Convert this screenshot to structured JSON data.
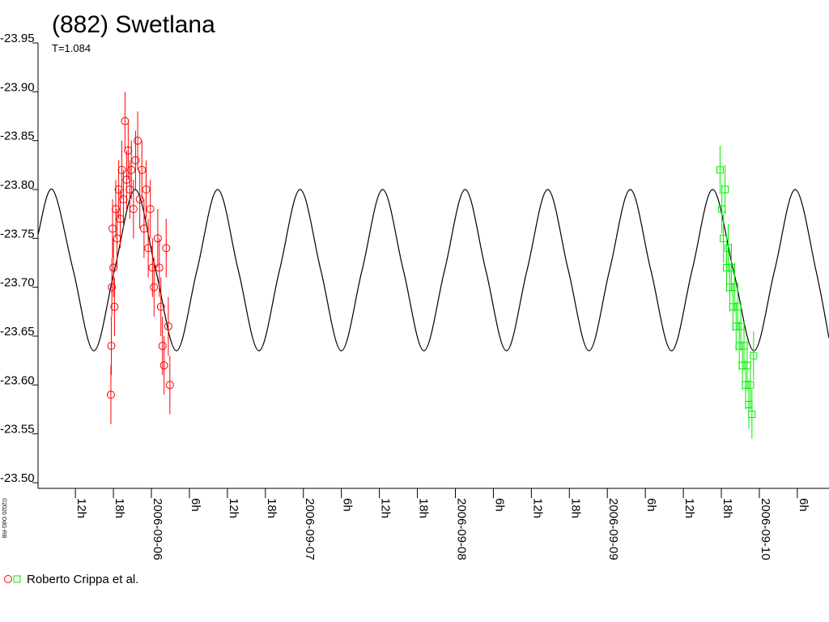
{
  "chart_data": {
    "type": "scatter",
    "title": "(882) Swetlana",
    "subtitle": "T=1.084",
    "copyright": "©2020 OdG-RB",
    "ylim": [
      -23.95,
      -23.5
    ],
    "yticks": [
      -23.95,
      {
        "value": -23.9,
        "label": "-23.90"
      },
      -23.85,
      {
        "value": -23.8,
        "label": "-23.80"
      },
      -23.75,
      {
        "value": -23.7,
        "label": "-23.70"
      },
      -23.65,
      {
        "value": -23.6,
        "label": "-23.60"
      },
      -23.55,
      {
        "value": -23.5,
        "label": "-23.50"
      }
    ],
    "xlim": [
      "2006-09-05 06:06",
      "2006-09-10 11:00"
    ],
    "xticks": [
      {
        "value": "2006-09-05 12:00",
        "label": "12h"
      },
      {
        "value": "2006-09-05 18:00",
        "label": "18h"
      },
      {
        "value": "2006-09-06 00:00",
        "label": "2006-09-06"
      },
      {
        "value": "2006-09-06 06:00",
        "label": "6h"
      },
      {
        "value": "2006-09-06 12:00",
        "label": "12h"
      },
      {
        "value": "2006-09-06 18:00",
        "label": "18h"
      },
      {
        "value": "2006-09-07 00:00",
        "label": "2006-09-07"
      },
      {
        "value": "2006-09-07 06:00",
        "label": "6h"
      },
      {
        "value": "2006-09-07 12:00",
        "label": "12h"
      },
      {
        "value": "2006-09-07 18:00",
        "label": "18h"
      },
      {
        "value": "2006-09-08 00:00",
        "label": "2006-09-08"
      },
      {
        "value": "2006-09-08 06:00",
        "label": "6h"
      },
      {
        "value": "2006-09-08 12:00",
        "label": "12h"
      },
      {
        "value": "2006-09-08 18:00",
        "label": "18h"
      },
      {
        "value": "2006-09-09 00:00",
        "label": "2006-09-09"
      },
      {
        "value": "2006-09-09 06:00",
        "label": "6h"
      },
      {
        "value": "2006-09-09 12:00",
        "label": "12h"
      },
      {
        "value": "2006-09-09 18:00",
        "label": "18h"
      },
      {
        "value": "2006-09-10 00:00",
        "label": "2006-09-10"
      },
      {
        "value": "2006-09-10 06:00",
        "label": "6h"
      }
    ],
    "curve": {
      "color": "#000000",
      "x": [
        "2006-09-05 06:06",
        "2006-09-05 08:24",
        "2006-09-05 11:39",
        "2006-09-05 14:55",
        "2006-09-05 18:10",
        "2006-09-05 21:26",
        "2006-09-06 00:41",
        "2006-09-06 03:57",
        "2006-09-06 07:12",
        "2006-09-06 10:28",
        "2006-09-06 13:43",
        "2006-09-06 16:59",
        "2006-09-06 20:14",
        "2006-09-06 23:29",
        "2006-09-07 02:45",
        "2006-09-07 06:00",
        "2006-09-07 09:16",
        "2006-09-07 12:31",
        "2006-09-07 15:47",
        "2006-09-07 19:02",
        "2006-09-07 22:18",
        "2006-09-08 01:33",
        "2006-09-08 04:48",
        "2006-09-08 08:04",
        "2006-09-08 11:19",
        "2006-09-08 14:35",
        "2006-09-08 17:50",
        "2006-09-08 21:06",
        "2006-09-09 00:21",
        "2006-09-09 03:37",
        "2006-09-09 06:52",
        "2006-09-09 10:08",
        "2006-09-09 13:23",
        "2006-09-09 16:38",
        "2006-09-09 19:54",
        "2006-09-09 23:09",
        "2006-09-10 02:25",
        "2006-09-10 05:40",
        "2006-09-10 08:56",
        "2006-09-10 11:00"
      ],
      "values": [
        -23.754,
        -23.8,
        -23.7175,
        -23.635,
        -23.7175,
        -23.8,
        -23.7175,
        -23.635,
        -23.7175,
        -23.8,
        -23.7175,
        -23.635,
        -23.7175,
        -23.8,
        -23.7175,
        -23.635,
        -23.7175,
        -23.8,
        -23.7175,
        -23.635,
        -23.7175,
        -23.8,
        -23.7175,
        -23.635,
        -23.7175,
        -23.8,
        -23.7175,
        -23.635,
        -23.7175,
        -23.8,
        -23.7175,
        -23.635,
        -23.7175,
        -23.8,
        -23.7175,
        -23.635,
        -23.7175,
        -23.8,
        -23.7175,
        -23.648
      ]
    },
    "series": [
      {
        "name": "Roberto Crippa et al.",
        "color": "#ff0000",
        "marker": "circle",
        "x": [
          "2006-09-05 17:36",
          "2006-09-05 17:40",
          "2006-09-05 17:45",
          "2006-09-05 17:52",
          "2006-09-05 18:00",
          "2006-09-05 18:10",
          "2006-09-05 18:22",
          "2006-09-05 18:35",
          "2006-09-05 18:50",
          "2006-09-05 19:05",
          "2006-09-05 19:20",
          "2006-09-05 19:35",
          "2006-09-05 19:50",
          "2006-09-05 20:05",
          "2006-09-05 20:20",
          "2006-09-05 20:35",
          "2006-09-05 20:50",
          "2006-09-05 21:10",
          "2006-09-05 21:30",
          "2006-09-05 21:50",
          "2006-09-05 22:10",
          "2006-09-05 22:30",
          "2006-09-05 22:50",
          "2006-09-05 23:10",
          "2006-09-05 23:30",
          "2006-09-05 23:50",
          "2006-09-06 00:10",
          "2006-09-06 00:25",
          "2006-09-06 01:00",
          "2006-09-06 01:15",
          "2006-09-06 01:30",
          "2006-09-06 01:45",
          "2006-09-06 02:00",
          "2006-09-06 02:20",
          "2006-09-06 02:40",
          "2006-09-06 02:55"
        ],
        "values": [
          -23.59,
          -23.64,
          -23.7,
          -23.76,
          -23.72,
          -23.68,
          -23.78,
          -23.75,
          -23.8,
          -23.77,
          -23.82,
          -23.79,
          -23.87,
          -23.81,
          -23.84,
          -23.8,
          -23.82,
          -23.78,
          -23.83,
          -23.85,
          -23.79,
          -23.82,
          -23.76,
          -23.8,
          -23.74,
          -23.78,
          -23.72,
          -23.7,
          -23.75,
          -23.72,
          -23.68,
          -23.64,
          -23.62,
          -23.74,
          -23.66,
          -23.6
        ],
        "errors": [
          0.03,
          0.03,
          0.03,
          0.03,
          0.03,
          0.03,
          0.03,
          0.03,
          0.03,
          0.03,
          0.03,
          0.03,
          0.03,
          0.03,
          0.03,
          0.03,
          0.03,
          0.03,
          0.03,
          0.03,
          0.03,
          0.03,
          0.03,
          0.03,
          0.03,
          0.03,
          0.03,
          0.03,
          0.03,
          0.03,
          0.03,
          0.03,
          0.03,
          0.03,
          0.03,
          0.03
        ]
      },
      {
        "color": "#00ee00",
        "marker": "square",
        "x": [
          "2006-09-09 17:48",
          "2006-09-09 18:05",
          "2006-09-09 18:20",
          "2006-09-09 18:35",
          "2006-09-09 18:50",
          "2006-09-09 19:05",
          "2006-09-09 19:20",
          "2006-09-09 19:35",
          "2006-09-09 19:50",
          "2006-09-09 20:05",
          "2006-09-09 20:20",
          "2006-09-09 20:35",
          "2006-09-09 20:50",
          "2006-09-09 21:05",
          "2006-09-09 21:20",
          "2006-09-09 21:35",
          "2006-09-09 21:50",
          "2006-09-09 22:05",
          "2006-09-09 22:20",
          "2006-09-09 22:35",
          "2006-09-09 22:50",
          "2006-09-09 23:05"
        ],
        "values": [
          -23.82,
          -23.78,
          -23.75,
          -23.8,
          -23.72,
          -23.74,
          -23.7,
          -23.72,
          -23.68,
          -23.7,
          -23.66,
          -23.68,
          -23.64,
          -23.66,
          -23.62,
          -23.64,
          -23.6,
          -23.62,
          -23.58,
          -23.6,
          -23.57,
          -23.63
        ],
        "errors": [
          0.025,
          0.025,
          0.025,
          0.025,
          0.025,
          0.025,
          0.025,
          0.025,
          0.025,
          0.025,
          0.025,
          0.025,
          0.025,
          0.025,
          0.025,
          0.025,
          0.025,
          0.025,
          0.025,
          0.025,
          0.025,
          0.025
        ]
      }
    ]
  }
}
